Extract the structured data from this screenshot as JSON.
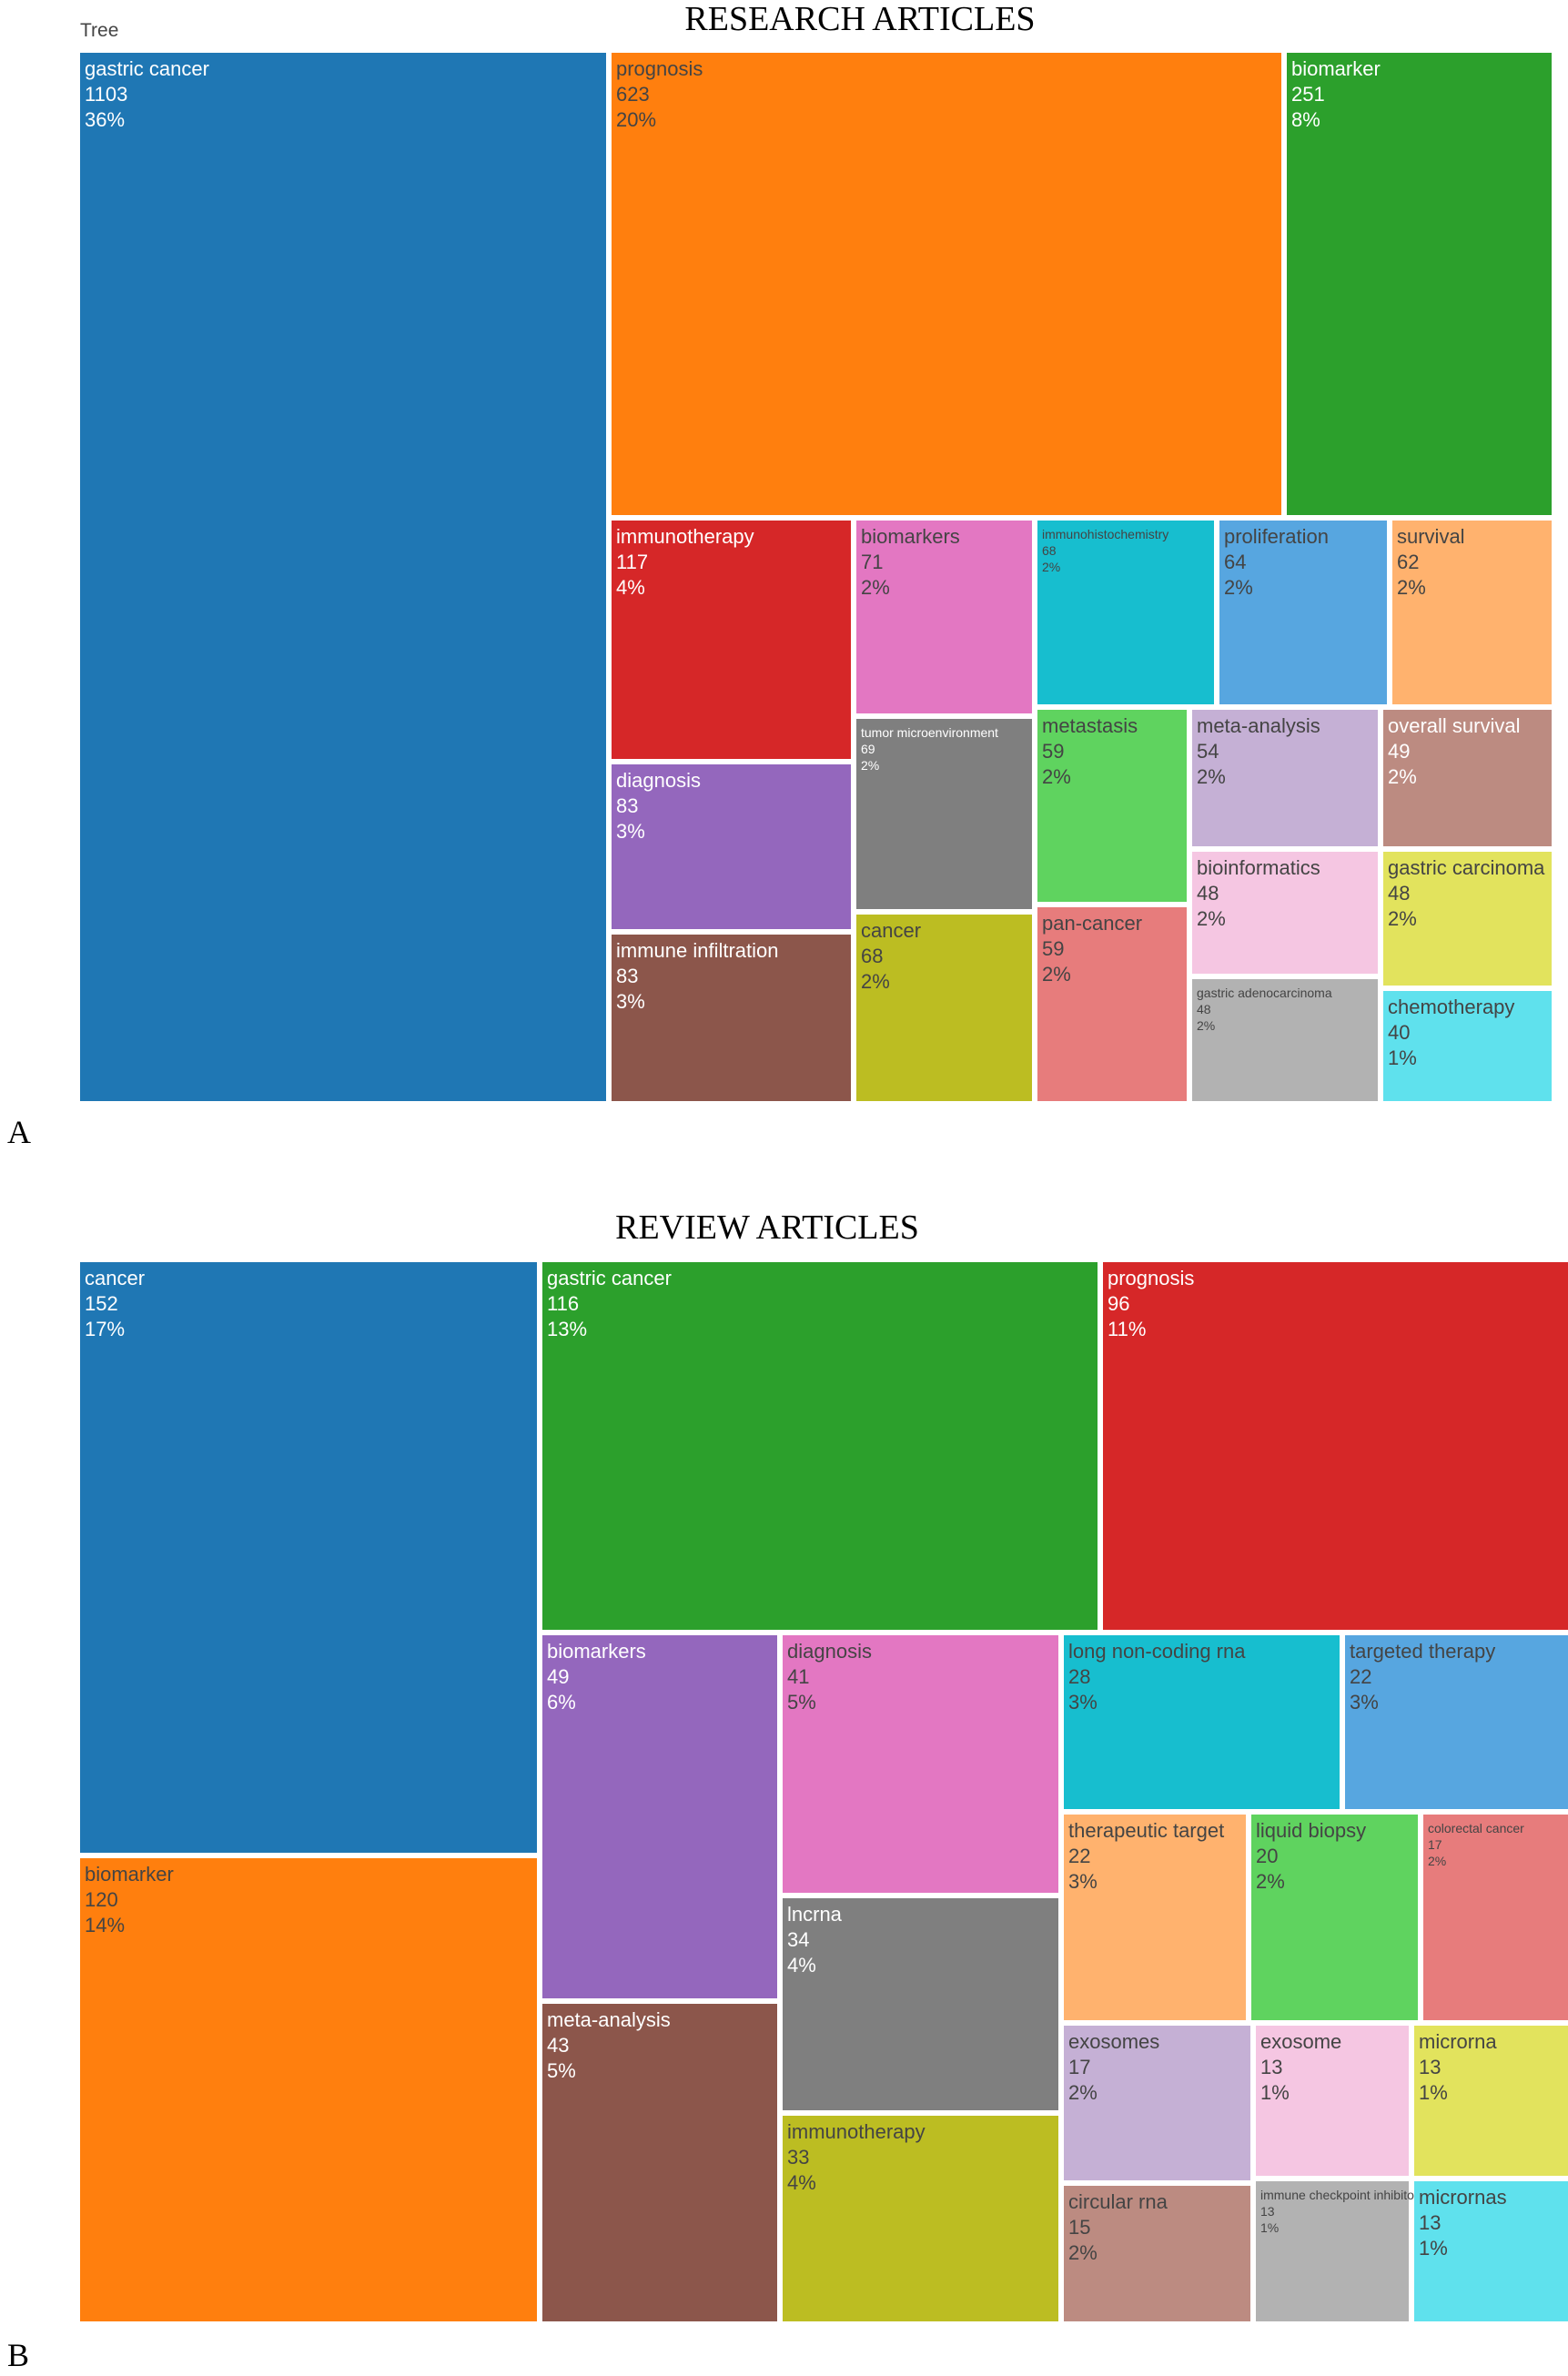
{
  "tree_label": "Tree",
  "panels": {
    "a": {
      "title": "RESEARCH ARTICLES",
      "letter": "A"
    },
    "b": {
      "title": "REVIEW ARTICLES",
      "letter": "B"
    }
  },
  "chart_data": [
    {
      "type": "treemap",
      "title": "RESEARCH ARTICLES",
      "panel_label": "A",
      "items": [
        {
          "label": "gastric cancer",
          "value": 1103,
          "percent": "36%",
          "color": "#1f77b4",
          "text_color": "#ffffff"
        },
        {
          "label": "prognosis",
          "value": 623,
          "percent": "20%",
          "color": "#ff7f0e",
          "text_color": "#444444"
        },
        {
          "label": "biomarker",
          "value": 251,
          "percent": "8%",
          "color": "#2ca02c",
          "text_color": "#ffffff"
        },
        {
          "label": "immunotherapy",
          "value": 117,
          "percent": "4%",
          "color": "#d62728",
          "text_color": "#ffffff"
        },
        {
          "label": "biomarkers",
          "value": 71,
          "percent": "2%",
          "color": "#e377c2",
          "text_color": "#444444"
        },
        {
          "label": "immunohistochemistry",
          "value": 68,
          "percent": "2%",
          "color": "#17becf",
          "text_color": "#444444"
        },
        {
          "label": "proliferation",
          "value": 64,
          "percent": "2%",
          "color": "#57a6e0",
          "text_color": "#444444"
        },
        {
          "label": "survival",
          "value": 62,
          "percent": "2%",
          "color": "#ffb26e",
          "text_color": "#444444"
        },
        {
          "label": "diagnosis",
          "value": 83,
          "percent": "3%",
          "color": "#9467bd",
          "text_color": "#ffffff"
        },
        {
          "label": "tumor microenvironment",
          "value": 69,
          "percent": "2%",
          "color": "#7f7f7f",
          "text_color": "#ffffff"
        },
        {
          "label": "metastasis",
          "value": 59,
          "percent": "2%",
          "color": "#5fd35f",
          "text_color": "#444444"
        },
        {
          "label": "meta-analysis",
          "value": 54,
          "percent": "2%",
          "color": "#c5b0d5",
          "text_color": "#444444"
        },
        {
          "label": "overall survival",
          "value": 49,
          "percent": "2%",
          "color": "#bc8b81",
          "text_color": "#ffffff"
        },
        {
          "label": "immune infiltration",
          "value": 83,
          "percent": "3%",
          "color": "#8c564b",
          "text_color": "#ffffff"
        },
        {
          "label": "cancer",
          "value": 68,
          "percent": "2%",
          "color": "#bcbd22",
          "text_color": "#444444"
        },
        {
          "label": "pan-cancer",
          "value": 59,
          "percent": "2%",
          "color": "#e77c7c",
          "text_color": "#444444"
        },
        {
          "label": "bioinformatics",
          "value": 48,
          "percent": "2%",
          "color": "#f5c6e2",
          "text_color": "#444444"
        },
        {
          "label": "gastric carcinoma",
          "value": 48,
          "percent": "2%",
          "color": "#e2e35d",
          "text_color": "#444444"
        },
        {
          "label": "gastric adenocarcinoma",
          "value": 48,
          "percent": "2%",
          "color": "#b2b2b2",
          "text_color": "#444444"
        },
        {
          "label": "chemotherapy",
          "value": 40,
          "percent": "1%",
          "color": "#5fe1ed",
          "text_color": "#444444"
        }
      ]
    },
    {
      "type": "treemap",
      "title": "REVIEW ARTICLES",
      "panel_label": "B",
      "items": [
        {
          "label": "cancer",
          "value": 152,
          "percent": "17%",
          "color": "#1f77b4",
          "text_color": "#ffffff"
        },
        {
          "label": "gastric cancer",
          "value": 116,
          "percent": "13%",
          "color": "#2ca02c",
          "text_color": "#ffffff"
        },
        {
          "label": "prognosis",
          "value": 96,
          "percent": "11%",
          "color": "#d62728",
          "text_color": "#ffffff"
        },
        {
          "label": "biomarker",
          "value": 120,
          "percent": "14%",
          "color": "#ff7f0e",
          "text_color": "#444444"
        },
        {
          "label": "biomarkers",
          "value": 49,
          "percent": "6%",
          "color": "#9467bd",
          "text_color": "#ffffff"
        },
        {
          "label": "diagnosis",
          "value": 41,
          "percent": "5%",
          "color": "#e377c2",
          "text_color": "#444444"
        },
        {
          "label": "long non-coding rna",
          "value": 28,
          "percent": "3%",
          "color": "#17becf",
          "text_color": "#444444"
        },
        {
          "label": "targeted therapy",
          "value": 22,
          "percent": "3%",
          "color": "#57a6e0",
          "text_color": "#444444"
        },
        {
          "label": "meta-analysis",
          "value": 43,
          "percent": "5%",
          "color": "#8c564b",
          "text_color": "#ffffff"
        },
        {
          "label": "lncrna",
          "value": 34,
          "percent": "4%",
          "color": "#7f7f7f",
          "text_color": "#ffffff"
        },
        {
          "label": "therapeutic target",
          "value": 22,
          "percent": "3%",
          "color": "#ffb26e",
          "text_color": "#444444"
        },
        {
          "label": "liquid biopsy",
          "value": 20,
          "percent": "2%",
          "color": "#5fd35f",
          "text_color": "#444444"
        },
        {
          "label": "colorectal cancer",
          "value": 17,
          "percent": "2%",
          "color": "#e77c7c",
          "text_color": "#444444"
        },
        {
          "label": "immunotherapy",
          "value": 33,
          "percent": "4%",
          "color": "#bcbd22",
          "text_color": "#444444"
        },
        {
          "label": "exosomes",
          "value": 17,
          "percent": "2%",
          "color": "#c5b0d5",
          "text_color": "#444444"
        },
        {
          "label": "exosome",
          "value": 13,
          "percent": "1%",
          "color": "#f5c6e2",
          "text_color": "#444444"
        },
        {
          "label": "microrna",
          "value": 13,
          "percent": "1%",
          "color": "#e2e35d",
          "text_color": "#444444"
        },
        {
          "label": "circular rna",
          "value": 15,
          "percent": "2%",
          "color": "#bc8b81",
          "text_color": "#444444"
        },
        {
          "label": "immune checkpoint inhibitors",
          "value": 13,
          "percent": "1%",
          "color": "#b2b2b2",
          "text_color": "#444444"
        },
        {
          "label": "micrornas",
          "value": 13,
          "percent": "1%",
          "color": "#5fe1ed",
          "text_color": "#444444"
        }
      ]
    }
  ]
}
